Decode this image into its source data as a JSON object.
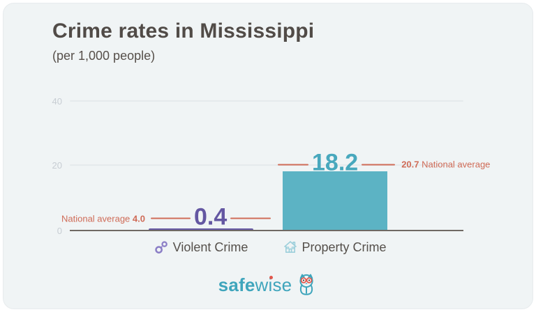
{
  "card": {
    "background": "#f0f4f5"
  },
  "chart_data": {
    "type": "bar",
    "title": "Crime rates in Mississippi",
    "subtitle": "(per 1,000 people)",
    "categories": [
      "Violent Crime",
      "Property Crime"
    ],
    "values": [
      0.4,
      18.2
    ],
    "value_labels": [
      "0.4",
      "18.2"
    ],
    "national_averages": [
      4.0,
      20.7
    ],
    "national_average_annotations": [
      {
        "prefix": "National average",
        "bold": "4.0"
      },
      {
        "bold": "20.7",
        "suffix": "National average"
      }
    ],
    "ylim": [
      0,
      40
    ],
    "yticks": [
      "40",
      "20",
      "0"
    ],
    "grid": true,
    "legend": "none",
    "bar_colors": [
      "#675aa5",
      "#5cb3c4"
    ],
    "value_label_colors": [
      "#6457a2",
      "#48a8bd"
    ],
    "national_average_color": "#cf6b57",
    "category_icons": [
      "handcuffs-icon",
      "house-icon"
    ]
  },
  "footer": {
    "logo_bold": "safe",
    "logo_light": "wise",
    "logo_color": "#3fa5bc",
    "logo_accent": "#e2574c"
  }
}
